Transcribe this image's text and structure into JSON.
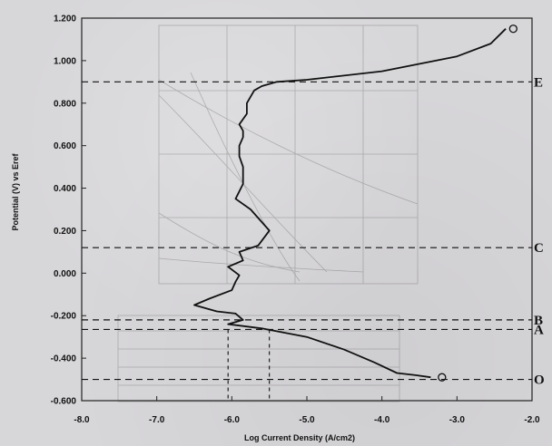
{
  "chart_data": {
    "type": "line",
    "title": "",
    "xlabel": "Log Current Density (A/cm2)",
    "ylabel": "Potential (V) vs Eref",
    "xlim": [
      -8.0,
      -2.0
    ],
    "ylim": [
      -0.6,
      1.2
    ],
    "x_ticks": [
      -8.0,
      -7.0,
      -6.0,
      -5.0,
      -4.0,
      -3.0,
      -2.0
    ],
    "x_tick_labels": [
      "-8.0",
      "-7.0",
      "-6.0",
      "-5.0",
      "-4.0",
      "-3.0",
      "-2.0"
    ],
    "y_ticks": [
      1.2,
      1.0,
      0.8,
      0.6,
      0.4,
      0.2,
      0.0,
      -0.2,
      -0.4,
      -0.6
    ],
    "y_tick_labels": [
      "1.200",
      "1.000",
      "0.800",
      "0.600",
      "0.400",
      "0.200",
      "0.000",
      "-0.200",
      "-0.400",
      "-0.600"
    ],
    "grid": false,
    "series": [
      {
        "color": "#111111",
        "x": [
          -3.35,
          -3.55,
          -3.8,
          -4.1,
          -4.5,
          -5.0,
          -5.6,
          -6.05,
          -5.85,
          -5.95,
          -6.2,
          -6.5,
          -6.3,
          -6.0,
          -5.95,
          -5.9,
          -6.05,
          -5.85,
          -5.9,
          -5.65,
          -5.5,
          -5.75,
          -5.95,
          -5.85,
          -5.85,
          -5.9,
          -5.9,
          -5.85,
          -5.85,
          -5.9,
          -5.8,
          -5.8,
          -5.75,
          -5.7,
          -5.6,
          -5.4,
          -5.0,
          -4.0,
          -3.0,
          -2.55,
          -2.35
        ],
        "y": [
          -0.49,
          -0.48,
          -0.47,
          -0.42,
          -0.36,
          -0.3,
          -0.26,
          -0.24,
          -0.22,
          -0.19,
          -0.18,
          -0.15,
          -0.12,
          -0.08,
          -0.04,
          -0.01,
          0.03,
          0.06,
          0.1,
          0.13,
          0.2,
          0.3,
          0.35,
          0.42,
          0.5,
          0.55,
          0.6,
          0.64,
          0.67,
          0.7,
          0.75,
          0.8,
          0.83,
          0.86,
          0.88,
          0.9,
          0.91,
          0.95,
          1.02,
          1.08,
          1.15
        ]
      }
    ],
    "markers": [
      {
        "symbol": "circle",
        "x": -2.25,
        "y": 1.15
      },
      {
        "symbol": "circle",
        "x": -3.2,
        "y": -0.49
      }
    ],
    "reference_lines": [
      {
        "label": "E",
        "y": 0.9
      },
      {
        "label": "C",
        "y": 0.12
      },
      {
        "label": "B",
        "y": -0.22
      },
      {
        "label": "A",
        "y": -0.265
      },
      {
        "label": "O",
        "y": -0.5
      }
    ],
    "vertical_lines": [
      {
        "x": -6.05,
        "y_top": -0.265
      },
      {
        "x": -5.5,
        "y_top": -0.265
      }
    ]
  }
}
